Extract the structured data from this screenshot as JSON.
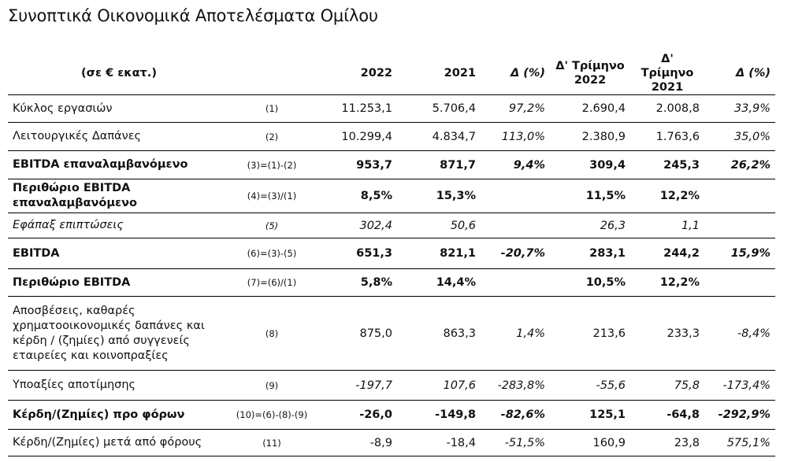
{
  "title": "Συνοπτικά Οικονομικά Αποτελέσματα Ομίλου",
  "header": {
    "label": "(σε € εκατ.)",
    "col_2022": "2022",
    "col_2021": "2021",
    "col_delta": "Δ (%)",
    "col_q2022_line1": "Δ' Τρίμηνο",
    "col_q2022_line2": "2022",
    "col_q2021_line1": "Δ' Τρίμηνο",
    "col_q2021_line2": "2021",
    "col_qdelta": "Δ (%)"
  },
  "rows": [
    {
      "label": "Κύκλος εργασιών",
      "ref": "(1)",
      "y2022": "11.253,1",
      "y2021": "5.706,4",
      "d": "97,2%",
      "q2022": "2.690,4",
      "q2021": "2.008,8",
      "qd": "33,9%",
      "style": "normal",
      "h": 35
    },
    {
      "label": "Λειτουργικές Δαπάνες",
      "ref": "(2)",
      "y2022": "10.299,4",
      "y2021": "4.834,7",
      "d": "113,0%",
      "q2022": "2.380,9",
      "q2021": "1.763,6",
      "qd": "35,0%",
      "style": "normal",
      "h": 36
    },
    {
      "label": "EBITDA επαναλαμβανόμενο",
      "ref": "(3)=(1)-(2)",
      "y2022": "953,7",
      "y2021": "871,7",
      "d": "9,4%",
      "q2022": "309,4",
      "q2021": "245,3",
      "qd": "26,2%",
      "style": "bold",
      "h": 36
    },
    {
      "label": "Περιθώριο EBITDA επαναλαμβανόμενο",
      "ref": "(4)=(3)/(1)",
      "y2022": "8,5%",
      "y2021": "15,3%",
      "d": "",
      "q2022": "11,5%",
      "q2021": "12,2%",
      "qd": "",
      "style": "bold",
      "h": 43
    },
    {
      "label": "Εφάπαξ επιπτώσεις",
      "ref": "(5)",
      "y2022": "302,4",
      "y2021": "50,6",
      "d": "",
      "q2022": "26,3",
      "q2021": "1,1",
      "qd": "",
      "style": "ital",
      "h": 32
    },
    {
      "label": "EBITDA",
      "ref": "(6)=(3)-(5)",
      "y2022": "651,3",
      "y2021": "821,1",
      "d": "-20,7%",
      "q2022": "283,1",
      "q2021": "244,2",
      "qd": "15,9%",
      "style": "bold",
      "h": 39
    },
    {
      "label": "Περιθώριο EBITDA",
      "ref": "(7)=(6)/(1)",
      "y2022": "5,8%",
      "y2021": "14,4%",
      "d": "",
      "q2022": "10,5%",
      "q2021": "12,2%",
      "qd": "",
      "style": "bold",
      "h": 35
    },
    {
      "label": "Αποσβέσεις, καθαρές χρηματοοικονομικές δαπάνες και κέρδη / (ζημίες) από συγγενείς εταιρείες και κοινοπραξίες",
      "ref": "(8)",
      "y2022": "875,0",
      "y2021": "863,3",
      "d": "1,4%",
      "q2022": "213,6",
      "q2021": "233,3",
      "qd": "-8,4%",
      "style": "normal",
      "h": 94
    },
    {
      "label": "Υποαξίες αποτίμησης",
      "ref": "(9)",
      "y2022": "-197,7",
      "y2021": "107,6",
      "d": "-283,8%",
      "q2022": "-55,6",
      "q2021": "75,8",
      "qd": "-173,4%",
      "style": "ital-num",
      "h": 38
    },
    {
      "label": "Κέρδη/(Ζημίες) προ φόρων",
      "ref": "(10)=(6)-(8)-(9)",
      "y2022": "-26,0",
      "y2021": "-149,8",
      "d": "-82,6%",
      "q2022": "125,1",
      "q2021": "-64,8",
      "qd": "-292,9%",
      "style": "bold",
      "h": 37
    },
    {
      "label": "Κέρδη/(Ζημίες) μετά από φόρους",
      "ref": "(11)",
      "y2022": "-8,9",
      "y2021": "-18,4",
      "d": "-51,5%",
      "q2022": "160,9",
      "q2021": "23,8",
      "qd": "575,1%",
      "style": "normal",
      "h": 34
    }
  ]
}
